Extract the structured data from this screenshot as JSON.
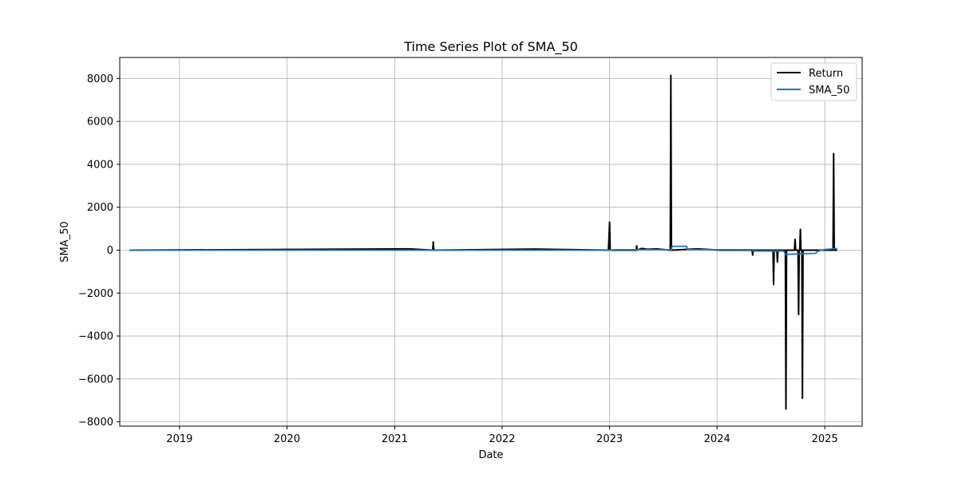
{
  "chart_data": {
    "type": "line",
    "title": "Time Series Plot of SMA_50",
    "xlabel": "Date",
    "ylabel": "SMA_50",
    "xlim": [
      "2018-06-12",
      "2025-05-08"
    ],
    "ylim": [
      -8200,
      8980
    ],
    "grid": true,
    "legend_position": "top-right",
    "x_ticks": [
      "2019",
      "2020",
      "2021",
      "2022",
      "2023",
      "2024",
      "2025"
    ],
    "x_tick_dates": [
      "2019-01-01",
      "2020-01-01",
      "2021-01-01",
      "2022-01-01",
      "2023-01-01",
      "2024-01-01",
      "2025-01-01"
    ],
    "y_ticks": [
      -8000,
      -6000,
      -4000,
      -2000,
      0,
      2000,
      4000,
      6000,
      8000
    ],
    "y_tick_labels": [
      "−8000",
      "−6000",
      "−4000",
      "−2000",
      "0",
      "2000",
      "4000",
      "6000",
      "8000"
    ],
    "series": [
      {
        "name": "Return",
        "color": "#000000",
        "x": [
          "2018-07-15",
          "2021-02-20",
          "2021-05-10",
          "2021-05-12",
          "2021-05-14",
          "2022-04-20",
          "2022-12-28",
          "2023-01-01",
          "2023-01-03",
          "2023-04-01",
          "2023-04-03",
          "2023-04-05",
          "2023-04-20",
          "2023-05-10",
          "2023-06-10",
          "2023-07-26",
          "2023-07-28",
          "2023-07-30",
          "2023-10-25",
          "2024-01-15",
          "2024-04-29",
          "2024-05-01",
          "2024-05-03",
          "2024-06-15",
          "2024-07-09",
          "2024-07-11",
          "2024-07-13",
          "2024-07-22",
          "2024-07-24",
          "2024-07-26",
          "2024-08-20",
          "2024-08-22",
          "2024-08-24",
          "2024-09-20",
          "2024-09-22",
          "2024-09-24",
          "2024-10-02",
          "2024-10-04",
          "2024-10-06",
          "2024-10-08",
          "2024-10-10",
          "2024-10-12",
          "2024-10-15",
          "2024-10-17",
          "2024-10-19",
          "2024-11-30",
          "2025-01-29",
          "2025-01-31",
          "2025-02-02",
          "2025-02-12"
        ],
        "y": [
          0,
          60,
          0,
          380,
          0,
          50,
          0,
          1300,
          0,
          0,
          200,
          0,
          80,
          40,
          60,
          0,
          8150,
          0,
          60,
          0,
          0,
          -230,
          0,
          0,
          0,
          -1600,
          0,
          0,
          -550,
          0,
          0,
          -7400,
          0,
          0,
          500,
          0,
          0,
          -3000,
          0,
          0,
          970,
          0,
          0,
          -6900,
          0,
          0,
          0,
          4500,
          0,
          0
        ]
      },
      {
        "name": "SMA_50",
        "color": "#1f77b4",
        "x": [
          "2018-07-15",
          "2023-01-05",
          "2023-01-15",
          "2023-07-30",
          "2023-08-01",
          "2023-09-20",
          "2023-09-22",
          "2024-05-01",
          "2024-05-03",
          "2024-08-15",
          "2024-08-20",
          "2024-10-25",
          "2024-11-30",
          "2024-12-10",
          "2025-01-01",
          "2025-02-12"
        ],
        "y": [
          0,
          0,
          20,
          20,
          180,
          180,
          20,
          20,
          -40,
          -40,
          -200,
          -160,
          -150,
          -40,
          30,
          80
        ]
      }
    ]
  }
}
